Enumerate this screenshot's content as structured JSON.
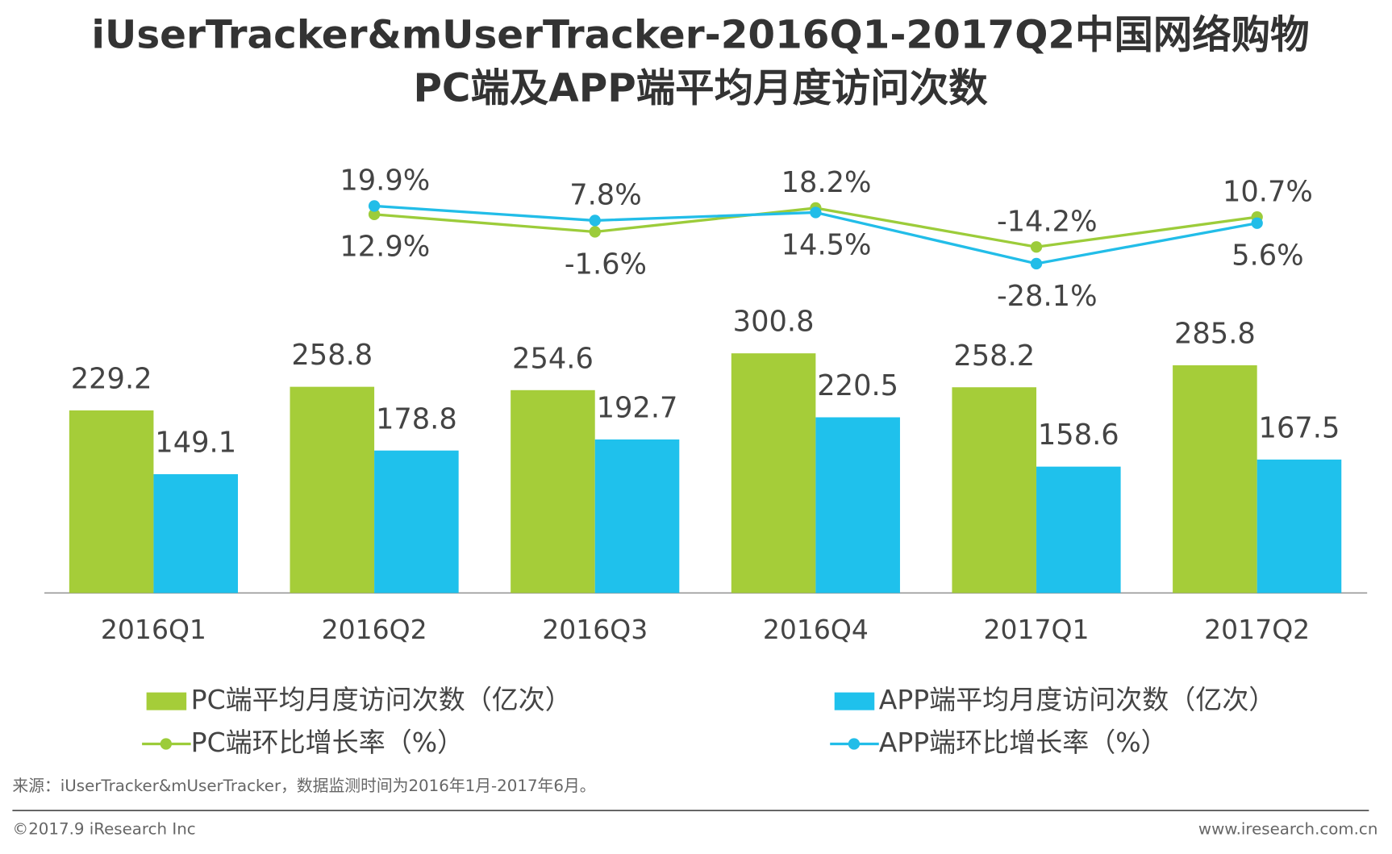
{
  "chart_data": {
    "type": "bar",
    "title": "iUserTracker&mUserTracker-2016Q1-2017Q2中国网络购物",
    "subtitle": "PC端及APP端平均月度访问次数",
    "categories": [
      "2016Q1",
      "2016Q2",
      "2016Q3",
      "2016Q4",
      "2017Q1",
      "2017Q2"
    ],
    "series": [
      {
        "name": "PC端平均月度访问次数（亿次）",
        "type": "bar",
        "color": "#a5cd39",
        "values": [
          229.2,
          258.8,
          254.6,
          300.8,
          258.2,
          285.8
        ]
      },
      {
        "name": "APP端平均月度访问次数（亿次）",
        "type": "bar",
        "color": "#1fc1ec",
        "values": [
          149.1,
          178.8,
          192.7,
          220.5,
          158.6,
          167.5
        ]
      },
      {
        "name": "PC端环比增长率（%）",
        "type": "line",
        "axis": "y2",
        "color": "#9ccc3a",
        "values": [
          null,
          12.9,
          -1.6,
          18.2,
          -14.2,
          10.7
        ],
        "value_labels": [
          null,
          "12.9%",
          "-1.6%",
          "18.2%",
          "-14.2%",
          "10.7%"
        ]
      },
      {
        "name": "APP端环比增长率（%）",
        "type": "line",
        "axis": "y2",
        "color": "#22bde8",
        "values": [
          null,
          19.9,
          7.8,
          14.5,
          -28.1,
          5.6
        ],
        "value_labels": [
          null,
          "19.9%",
          "7.8%",
          "14.5%",
          "-28.1%",
          "5.6%"
        ]
      }
    ],
    "ylim": [
      0,
      580
    ],
    "y2lim": [
      -40,
      40
    ],
    "source": "来源：iUserTracker&mUserTracker，数据监测时间为2016年1月-2017年6月。",
    "copyright": "©2017.9 iResearch Inc",
    "website": "www.iresearch.com.cn"
  }
}
